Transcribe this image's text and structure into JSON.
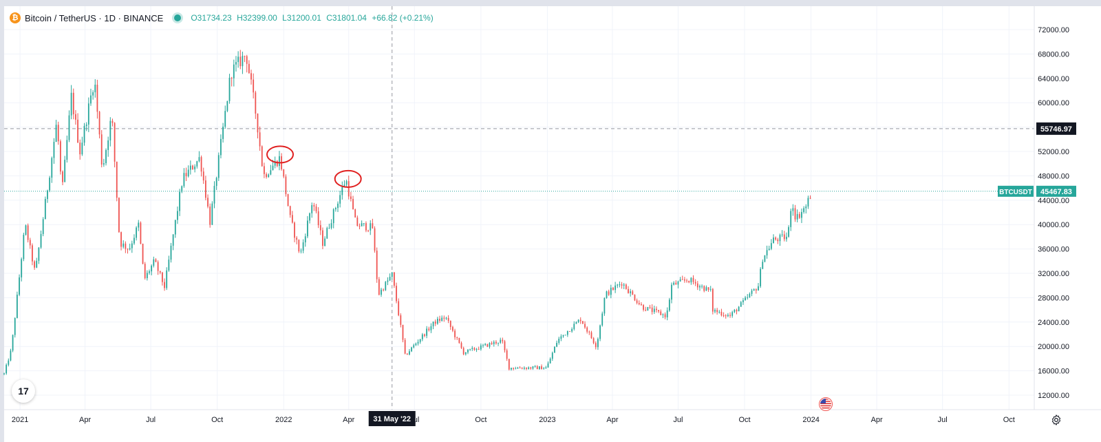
{
  "header": {
    "symbol": "Bitcoin / TetherUS · 1D · BINANCE",
    "logo_glyph": "₿",
    "open": "31734.23",
    "high": "32399.00",
    "low": "31200.01",
    "close": "31801.04",
    "change": "+66.82 (+0.21%)"
  },
  "crosshair": {
    "price_label": "55746.97",
    "date_label": "31 May '22"
  },
  "last_price": {
    "symbol_label": "BTCUSDT",
    "price_label": "45467.83"
  },
  "tv_logo": "17",
  "icons": {
    "settings": "gear-icon",
    "economic_events": "us-flag-icon",
    "brand": "tradingview-logo"
  },
  "colors": {
    "up": "#26a69a",
    "down": "#ef5350",
    "annotation": "#e02020",
    "crosshair": "#9598a1"
  },
  "chart_data": {
    "type": "candlestick",
    "title": "Bitcoin / TetherUS · 1D · BINANCE",
    "xlabel": "",
    "ylabel": "",
    "ylim": [
      10000,
      74000
    ],
    "x_range": [
      "2020-12-10",
      "2024-11-05"
    ],
    "y_ticks": [
      "72000.00",
      "68000.00",
      "64000.00",
      "60000.00",
      "56000.00",
      "52000.00",
      "48000.00",
      "44000.00",
      "40000.00",
      "36000.00",
      "32000.00",
      "28000.00",
      "24000.00",
      "20000.00",
      "16000.00",
      "12000.00"
    ],
    "x_ticks": [
      {
        "date": "2021-01-01",
        "label": "2021"
      },
      {
        "date": "2021-04-01",
        "label": "Apr"
      },
      {
        "date": "2021-07-01",
        "label": "Jul"
      },
      {
        "date": "2021-10-01",
        "label": "Oct"
      },
      {
        "date": "2022-01-01",
        "label": "2022"
      },
      {
        "date": "2022-04-01",
        "label": "Apr"
      },
      {
        "date": "2022-07-01",
        "label": "Jul"
      },
      {
        "date": "2022-10-01",
        "label": "Oct"
      },
      {
        "date": "2023-01-01",
        "label": "2023"
      },
      {
        "date": "2023-04-01",
        "label": "Apr"
      },
      {
        "date": "2023-07-01",
        "label": "Jul"
      },
      {
        "date": "2023-10-01",
        "label": "Oct"
      },
      {
        "date": "2024-01-01",
        "label": "2024"
      },
      {
        "date": "2024-04-01",
        "label": "Apr"
      },
      {
        "date": "2024-07-01",
        "label": "Jul"
      },
      {
        "date": "2024-10-01",
        "label": "Oct"
      }
    ],
    "price_path": [
      [
        "2020-12-10",
        15500
      ],
      [
        "2020-12-20",
        19500
      ],
      [
        "2021-01-08",
        40000
      ],
      [
        "2021-01-22",
        32000
      ],
      [
        "2021-02-08",
        46000
      ],
      [
        "2021-02-21",
        57000
      ],
      [
        "2021-02-28",
        45000
      ],
      [
        "2021-03-13",
        61000
      ],
      [
        "2021-03-25",
        52000
      ],
      [
        "2021-04-14",
        64000
      ],
      [
        "2021-04-25",
        49000
      ],
      [
        "2021-05-08",
        58000
      ],
      [
        "2021-05-19",
        37000
      ],
      [
        "2021-06-01",
        36000
      ],
      [
        "2021-06-14",
        40000
      ],
      [
        "2021-06-22",
        31000
      ],
      [
        "2021-07-06",
        34000
      ],
      [
        "2021-07-20",
        29800
      ],
      [
        "2021-08-14",
        47500
      ],
      [
        "2021-09-07",
        51000
      ],
      [
        "2021-09-21",
        40500
      ],
      [
        "2021-10-20",
        65000
      ],
      [
        "2021-11-10",
        68000
      ],
      [
        "2021-11-25",
        57000
      ],
      [
        "2021-12-04",
        48000
      ],
      [
        "2021-12-27",
        51000
      ],
      [
        "2022-01-10",
        41000
      ],
      [
        "2022-01-24",
        35000
      ],
      [
        "2022-02-10",
        44000
      ],
      [
        "2022-02-24",
        37000
      ],
      [
        "2022-03-28",
        47500
      ],
      [
        "2022-04-11",
        40000
      ],
      [
        "2022-05-04",
        39500
      ],
      [
        "2022-05-12",
        28500
      ],
      [
        "2022-05-31",
        31800
      ],
      [
        "2022-06-13",
        22500
      ],
      [
        "2022-06-18",
        18500
      ],
      [
        "2022-07-29",
        24000
      ],
      [
        "2022-08-13",
        24800
      ],
      [
        "2022-09-07",
        19000
      ],
      [
        "2022-10-30",
        21000
      ],
      [
        "2022-11-09",
        16500
      ],
      [
        "2022-12-31",
        16500
      ],
      [
        "2023-01-15",
        21000
      ],
      [
        "2023-02-16",
        24500
      ],
      [
        "2023-03-10",
        20000
      ],
      [
        "2023-03-22",
        28500
      ],
      [
        "2023-04-14",
        30500
      ],
      [
        "2023-05-12",
        26500
      ],
      [
        "2023-06-15",
        25000
      ],
      [
        "2023-06-22",
        30000
      ],
      [
        "2023-07-15",
        31000
      ],
      [
        "2023-08-15",
        29000
      ],
      [
        "2023-08-17",
        26000
      ],
      [
        "2023-09-11",
        25000
      ],
      [
        "2023-10-01",
        27500
      ],
      [
        "2023-10-20",
        30000
      ],
      [
        "2023-10-26",
        34500
      ],
      [
        "2023-11-10",
        37500
      ],
      [
        "2023-11-30",
        38000
      ],
      [
        "2023-12-05",
        44000
      ],
      [
        "2023-12-11",
        41000
      ],
      [
        "2023-12-25",
        43000
      ],
      [
        "2024-01-02",
        45467.83
      ]
    ],
    "annotations": [
      {
        "type": "ellipse",
        "date": "2021-12-27",
        "price": 51500,
        "color": "#e02020"
      },
      {
        "type": "ellipse",
        "date": "2022-03-31",
        "price": 47500,
        "color": "#e02020"
      }
    ],
    "crosshair": {
      "date": "2022-05-31",
      "price": 55746.97
    },
    "last_price": 45467.83
  }
}
